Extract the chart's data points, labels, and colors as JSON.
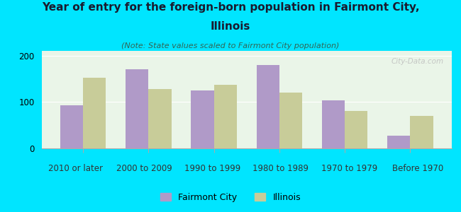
{
  "title_line1": "Year of entry for the foreign-born population in Fairmont City,",
  "title_line2": "Illinois",
  "subtitle": "(Note: State values scaled to Fairmont City population)",
  "categories": [
    "2010 or later",
    "2000 to 2009",
    "1990 to 1999",
    "1980 to 1989",
    "1970 to 1979",
    "Before 1970"
  ],
  "fairmont_city": [
    93,
    170,
    125,
    180,
    103,
    28
  ],
  "illinois": [
    152,
    128,
    137,
    120,
    80,
    70
  ],
  "fairmont_color": "#b09ac8",
  "illinois_color": "#c8cc99",
  "background_outer": "#00e5ff",
  "background_plot": "#eaf5e8",
  "ylim": [
    0,
    210
  ],
  "yticks": [
    0,
    100,
    200
  ],
  "bar_width": 0.35,
  "legend_labels": [
    "Fairmont City",
    "Illinois"
  ],
  "watermark": "City-Data.com",
  "title_fontsize": 11,
  "subtitle_fontsize": 8,
  "tick_fontsize": 8.5
}
